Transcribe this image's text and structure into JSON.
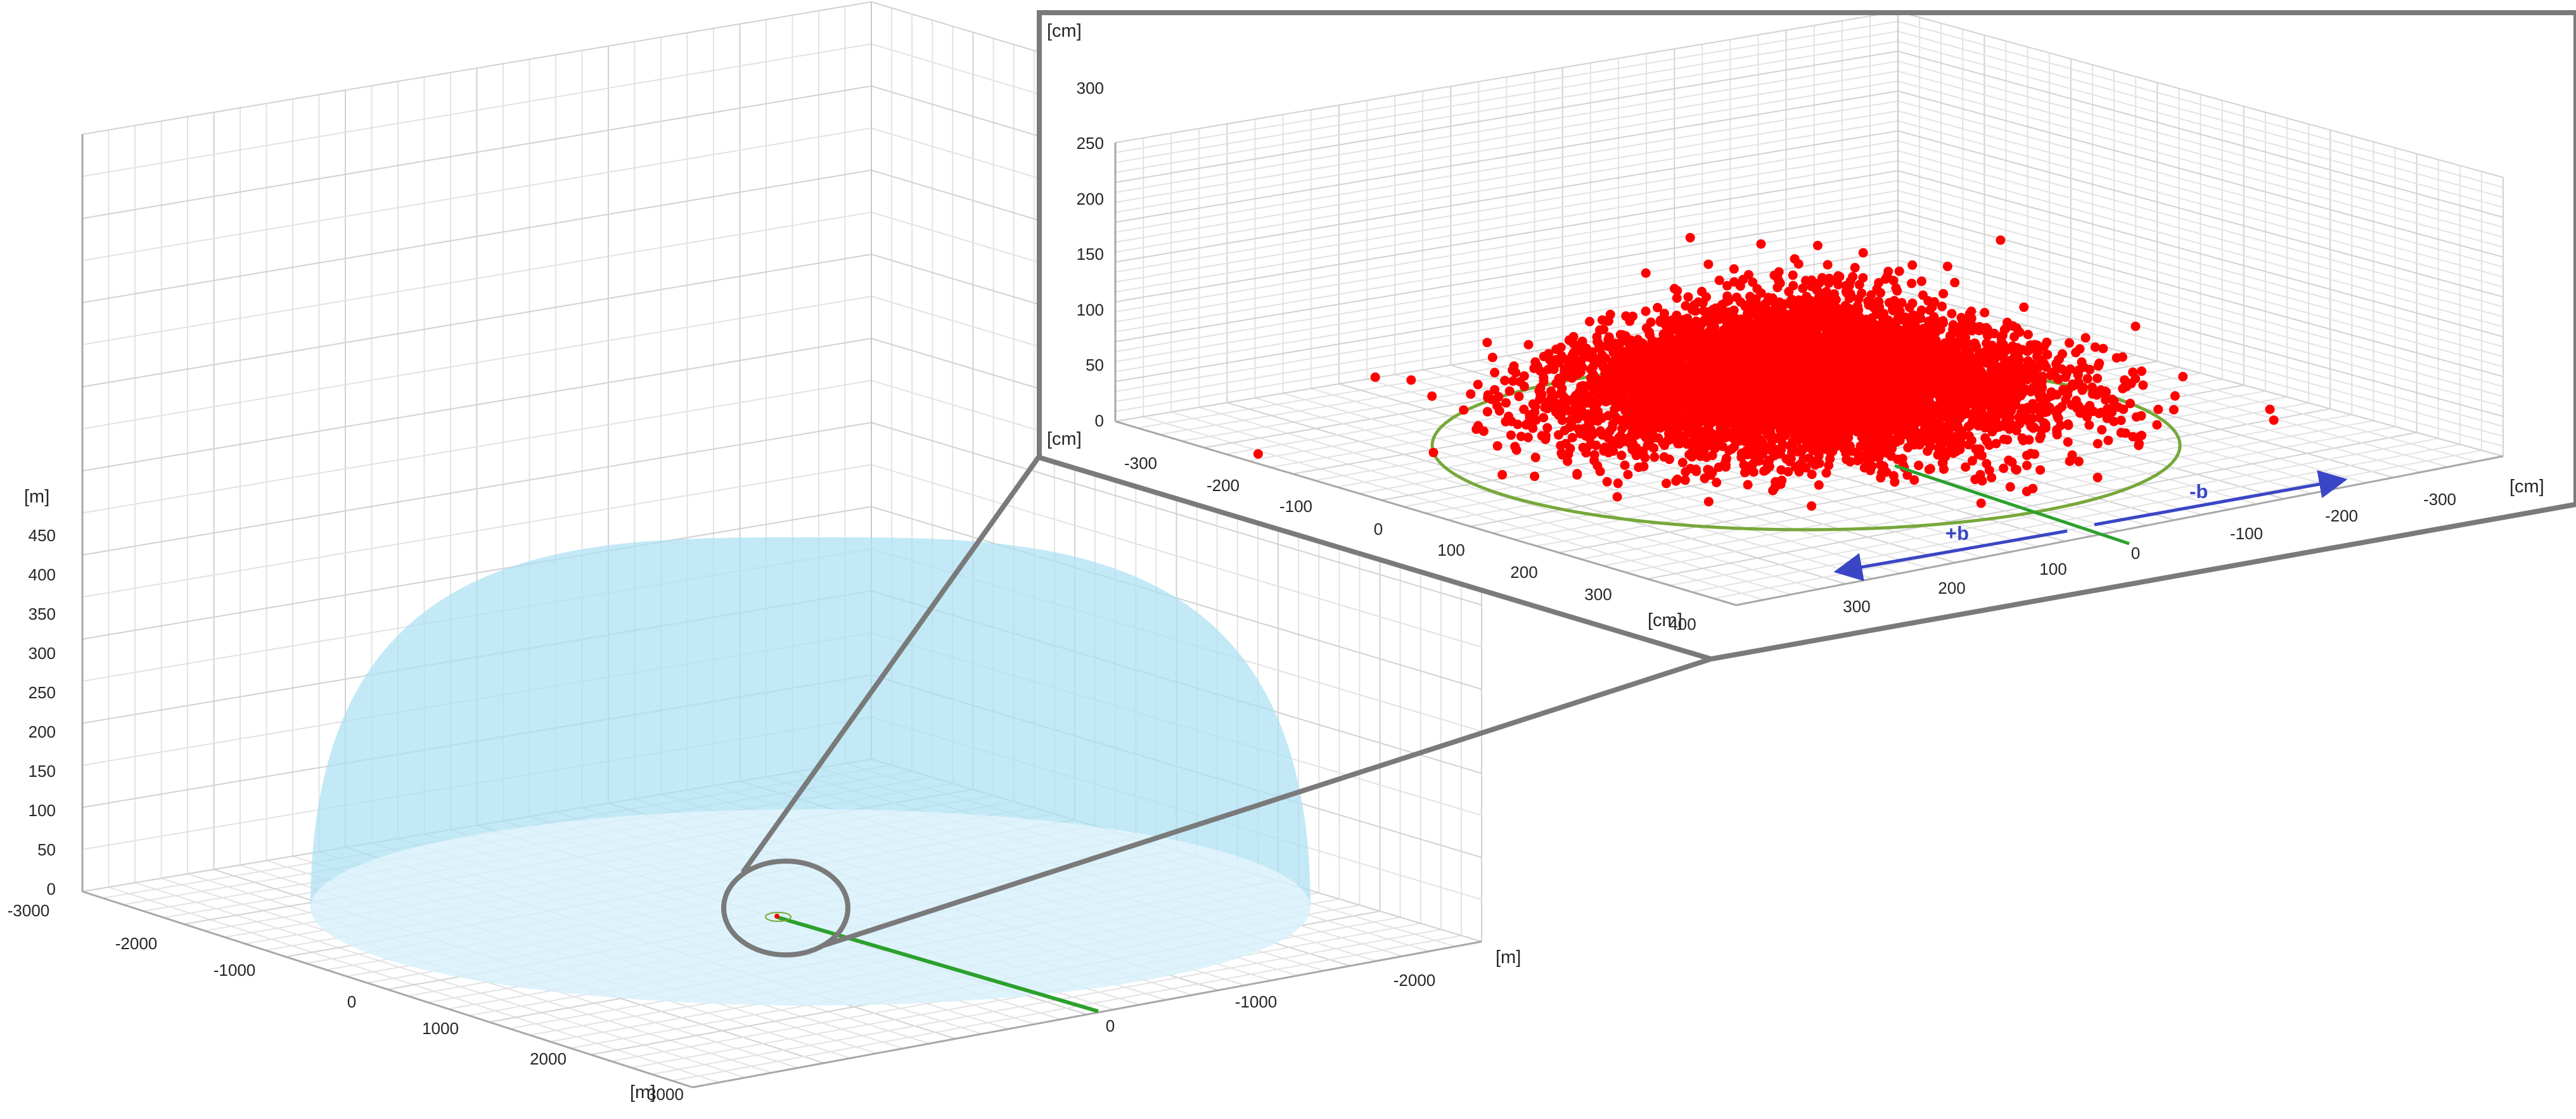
{
  "chart_data": [
    {
      "type": "scatter",
      "title": "",
      "units": {
        "x": "[m]",
        "y": "[m]",
        "z": "[m]"
      },
      "x_ticks": [
        "-3000",
        "-2000",
        "-1000",
        "0",
        "1000",
        "2000",
        "3000"
      ],
      "y_ticks": [
        "-2000",
        "-1000",
        "0"
      ],
      "z_ticks": [
        "0",
        "50",
        "100",
        "150",
        "200",
        "250",
        "300",
        "350",
        "400",
        "450"
      ],
      "xlim": [
        -3000,
        3000
      ],
      "ylim": [
        -3000,
        0
      ],
      "zlim": [
        0,
        450
      ],
      "grid": true,
      "hemisphere": {
        "radius": 3000,
        "color": "#a9dff4"
      },
      "baseline": {
        "from": [
          0,
          0
        ],
        "to": [
          0,
          -3000
        ],
        "color": "#2ca02c"
      },
      "zoom_circle_color": "#7a7a7a"
    },
    {
      "type": "scatter",
      "title": "",
      "units": {
        "x": "[cm]",
        "y": "[cm]",
        "z": "[cm]"
      },
      "x_ticks": [
        "-300",
        "-200",
        "-100",
        "0",
        "100",
        "200",
        "300",
        "400"
      ],
      "y_ticks": [
        "300",
        "200",
        "100",
        "0",
        "-100",
        "-200",
        "-300"
      ],
      "z_ticks": [
        "0",
        "50",
        "100",
        "150",
        "200",
        "250",
        "300"
      ],
      "xlim": [
        -350,
        400
      ],
      "ylim": [
        -350,
        350
      ],
      "zlim": [
        0,
        310
      ],
      "grid": true,
      "point_color": "#ff0000",
      "point_count_estimate": 6000,
      "circle": {
        "radius": 300,
        "color": "#77a83b"
      },
      "baseline_color": "#2ca02c",
      "arrows": [
        {
          "label": "-b",
          "direction": "-y",
          "color": "#3a45c6"
        },
        {
          "label": "+b",
          "direction": "+y",
          "color": "#3a45c6"
        }
      ]
    }
  ]
}
